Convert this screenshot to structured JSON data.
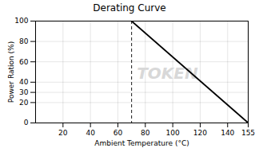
{
  "chart_data": {
    "type": "line",
    "title": "Derating Curve",
    "xlabel": "Ambient Temperature (°C)",
    "ylabel": "Power Ration (%)",
    "x": [
      70,
      155
    ],
    "values": [
      100,
      0
    ],
    "color": "#000000",
    "xlim": [
      0,
      155
    ],
    "ylim": [
      0,
      100
    ],
    "xticks": [
      20,
      40,
      60,
      80,
      100,
      120,
      140,
      155
    ],
    "yticks": [
      0,
      20,
      30,
      40,
      60,
      80,
      100
    ],
    "grid": true,
    "vlines": [
      {
        "x": 70,
        "color": "#000000",
        "line_style": "dashed"
      }
    ],
    "annotations": [
      {
        "text": "TOKEN",
        "color": "#d8d8d8"
      }
    ]
  }
}
